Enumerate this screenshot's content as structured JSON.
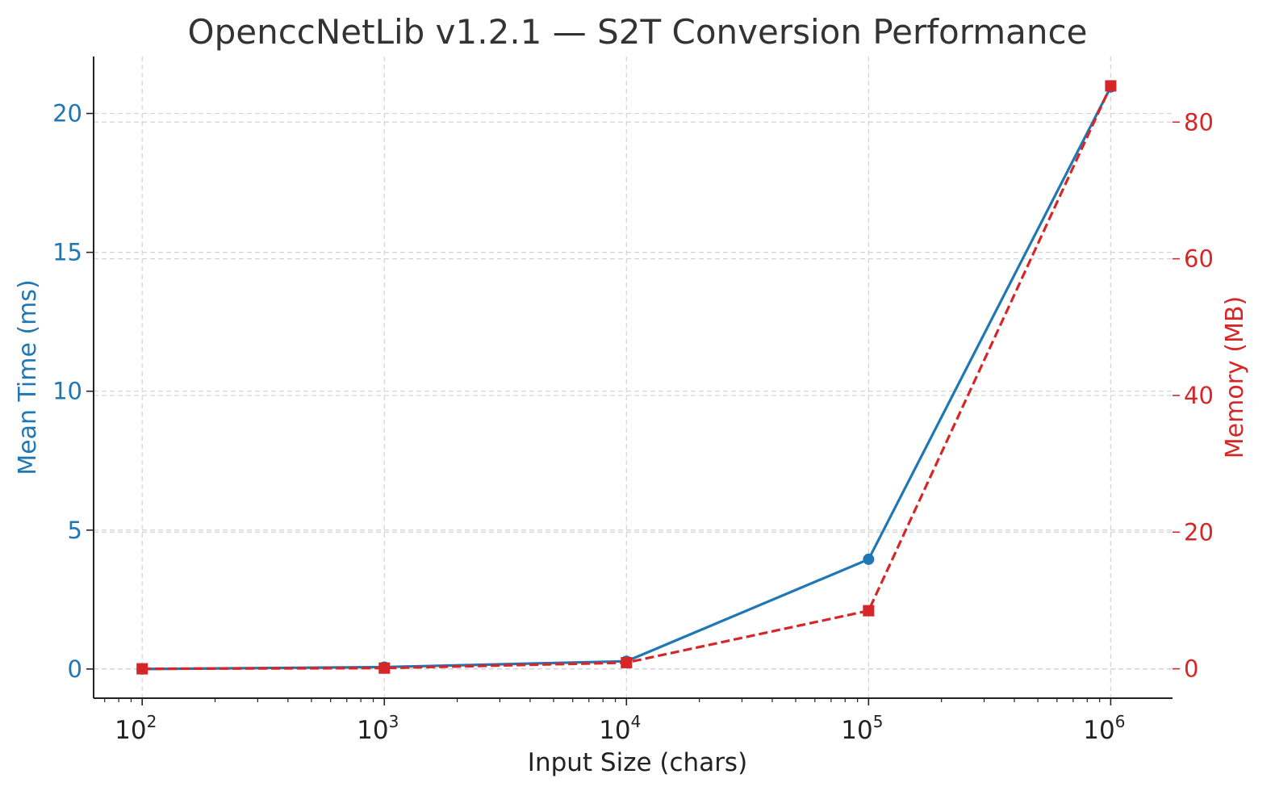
{
  "chart_data": {
    "type": "line",
    "title": "OpenccNetLib v1.2.1 — S2T Conversion Performance",
    "xlabel": "Input Size (chars)",
    "ylabel_left": "Mean Time (ms)",
    "ylabel_right": "Memory (MB)",
    "x_scale": "log",
    "x": [
      100,
      1000,
      10000,
      100000,
      1000000
    ],
    "x_tick_labels": [
      {
        "base": "10",
        "exp": "2",
        "value": 100
      },
      {
        "base": "10",
        "exp": "3",
        "value": 1000
      },
      {
        "base": "10",
        "exp": "4",
        "value": 10000
      },
      {
        "base": "10",
        "exp": "5",
        "value": 100000
      },
      {
        "base": "10",
        "exp": "6",
        "value": 1000000
      }
    ],
    "xlim": [
      63,
      1800000
    ],
    "y_left_ticks": [
      "0",
      "5",
      "10",
      "15",
      "20"
    ],
    "y_left_tick_values": [
      0,
      5,
      10,
      15,
      20
    ],
    "ylim_left": [
      -1.05,
      22.05
    ],
    "y_right_ticks": [
      "0",
      "20",
      "40",
      "60",
      "80"
    ],
    "y_right_tick_values": [
      0,
      20,
      40,
      60,
      80
    ],
    "ylim_right": [
      -4.3,
      89.6
    ],
    "grid": true,
    "series": [
      {
        "axis": "left",
        "color": "#1f77b4",
        "line_style": "solid",
        "marker": "circle",
        "values": [
          0.0,
          0.07,
          0.28,
          3.95,
          20.95
        ]
      },
      {
        "axis": "right",
        "color": "#d62728",
        "line_style": "dashed",
        "marker": "square",
        "values": [
          0.0,
          0.1,
          0.9,
          8.5,
          85.3
        ]
      }
    ],
    "colors": {
      "left_axis": "#1f77b4",
      "right_axis": "#d62728",
      "grid": "#d3d3d3",
      "axis_line": "#222222"
    }
  }
}
